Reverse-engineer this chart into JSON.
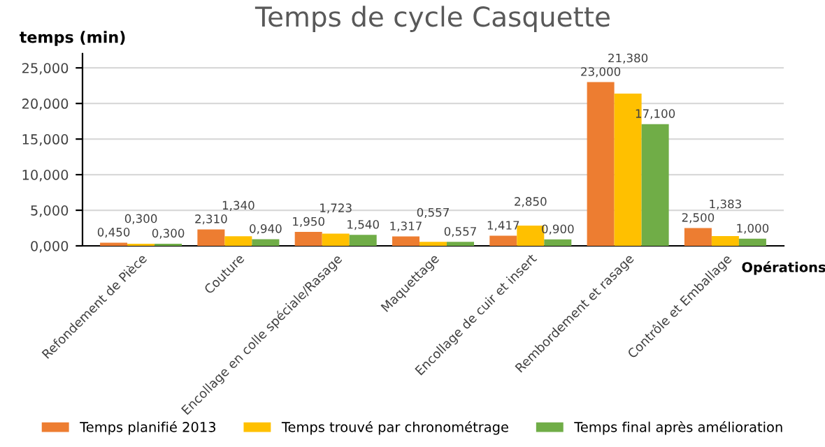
{
  "chart_data": {
    "type": "bar",
    "title": "Temps de cycle Casquette",
    "ylabel": "temps (min)",
    "xlabel": "Opérations",
    "categories": [
      "Refondement de Pièce",
      "Couture",
      "Encollage en colle spéciale/Rasage",
      "Maquettage",
      "Encollage de cuir et insert",
      "Rembordement et rasage",
      "Contrôle et Emballage"
    ],
    "series": [
      {
        "name": "Temps planifié 2013",
        "color": "#ed7d31",
        "values": [
          0.45,
          2.31,
          1.95,
          1.317,
          1.417,
          23.0,
          2.5
        ],
        "value_labels": [
          "0,450",
          "2,310",
          "1,950",
          "1,317",
          "1,417",
          "23,000",
          "2,500"
        ]
      },
      {
        "name": "Temps trouvé par chronométrage",
        "color": "#ffc000",
        "values": [
          0.3,
          1.34,
          1.723,
          0.557,
          2.85,
          21.38,
          1.383
        ],
        "value_labels": [
          "0,300",
          "1,340",
          "1,723",
          "0,557",
          "2,850",
          "21,380",
          "1,383"
        ]
      },
      {
        "name": "Temps final après amélioration",
        "color": "#70ad47",
        "values": [
          0.3,
          0.94,
          1.54,
          0.557,
          0.9,
          17.1,
          1.0
        ],
        "value_labels": [
          "0,300",
          "0,940",
          "1,540",
          "0,557",
          "0,900",
          "17,100",
          "1,000"
        ]
      }
    ],
    "ylim": [
      0,
      27
    ],
    "yticks": [
      {
        "value": 0,
        "label": "0,000"
      },
      {
        "value": 5,
        "label": "5,000"
      },
      {
        "value": 10,
        "label": "10,000"
      },
      {
        "value": 15,
        "label": "15,000"
      },
      {
        "value": 20,
        "label": "20,000"
      },
      {
        "value": 25,
        "label": "25,000"
      }
    ],
    "grid": "y",
    "legend": "bottom"
  }
}
